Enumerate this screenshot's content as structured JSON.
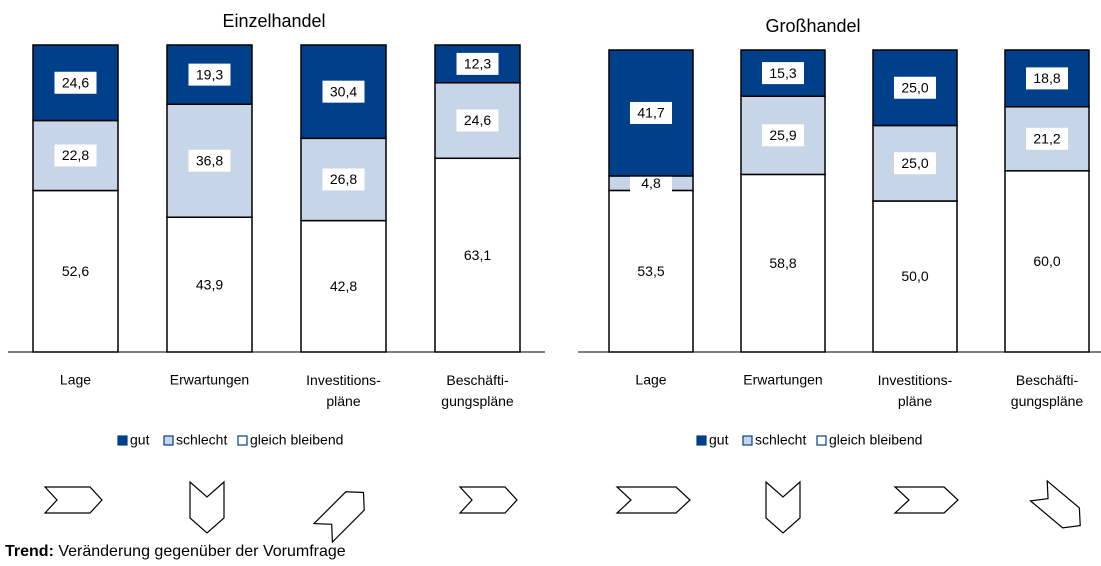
{
  "chart_data": [
    {
      "type": "bar",
      "stacked": true,
      "title": "Einzelhandel",
      "categories": [
        "Lage",
        "Erwartungen",
        "Investitions-\npläne",
        "Beschäfti-\ngungspläne"
      ],
      "ylim": [
        0,
        100
      ],
      "series": [
        {
          "name": "gut",
          "color": "#003f8a",
          "values": [
            24.6,
            19.3,
            30.4,
            12.3
          ],
          "value_labels": [
            "24,6",
            "19,3",
            "30,4",
            "12,3"
          ]
        },
        {
          "name": "schlecht",
          "color": "#c6d5e8",
          "values": [
            22.8,
            36.8,
            26.8,
            24.6
          ],
          "value_labels": [
            "22,8",
            "36,8",
            "26,8",
            "24,6"
          ]
        },
        {
          "name": "gleich bleibend",
          "color": "#ffffff",
          "values": [
            52.6,
            43.9,
            42.8,
            63.1
          ],
          "value_labels": [
            "52,6",
            "43,9",
            "42,8",
            "63,1"
          ]
        }
      ]
    },
    {
      "type": "bar",
      "stacked": true,
      "title": "Großhandel",
      "categories": [
        "Lage",
        "Erwartungen",
        "Investitions-\npläne",
        "Beschäfti-\ngungspläne"
      ],
      "ylim": [
        0,
        100
      ],
      "series": [
        {
          "name": "gut",
          "color": "#003f8a",
          "values": [
            41.7,
            15.3,
            25.0,
            18.8
          ],
          "value_labels": [
            "41,7",
            "15,3",
            "25,0",
            "18,8"
          ]
        },
        {
          "name": "schlecht",
          "color": "#c6d5e8",
          "values": [
            4.8,
            25.9,
            25.0,
            21.2
          ],
          "value_labels": [
            "4,8",
            "25,9",
            "25,0",
            "21,2"
          ]
        },
        {
          "name": "gleich bleibend",
          "color": "#ffffff",
          "values": [
            53.5,
            58.8,
            50.0,
            60.0
          ],
          "value_labels": [
            "53,5",
            "58,8",
            "50,0",
            "60,0"
          ]
        }
      ]
    }
  ],
  "footnote": {
    "label": "Trend:",
    "text": "Veränderung gegenüber der Vorumfrage"
  }
}
